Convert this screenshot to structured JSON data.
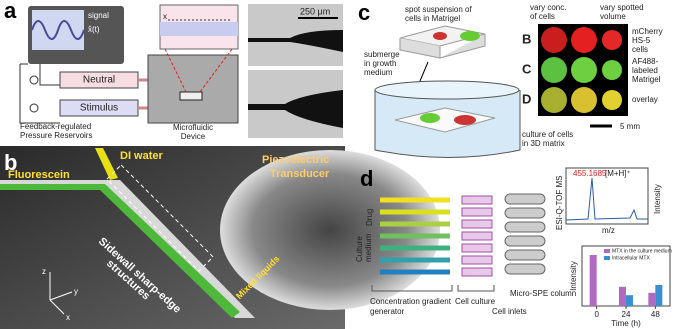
{
  "panel_a": {
    "letter": "a",
    "signal": "signal",
    "signal_symbol": "x̂(t)",
    "x_marker": "x",
    "scale_bar": "250 μm",
    "neutral": "Neutral",
    "stimulus": "Stimulus",
    "reservoirs": [
      "Feedback-regulated",
      "Pressure Reservoirs"
    ],
    "device": [
      "Microfluidic",
      "Device"
    ]
  },
  "panel_b": {
    "letter": "b",
    "di_water": "DI water",
    "transducer": [
      "Piezoelectric",
      "Transducer"
    ],
    "fluorescein": "Fluorescein",
    "structures": [
      "Sidewall sharp-edge",
      "structures"
    ],
    "mixed": "Mixed liquids",
    "axes": [
      "z",
      "y",
      "x"
    ]
  },
  "panel_c": {
    "letter": "c",
    "spot": [
      "spot suspension of",
      "cells in Matrigel"
    ],
    "submerge": [
      "submerge",
      "in growth",
      "medium"
    ],
    "vary_conc": [
      "vary conc.",
      "of cells"
    ],
    "vary_volume": [
      "vary spotted",
      "volume"
    ],
    "rows": [
      {
        "letter": "B",
        "label": [
          "mCherry",
          "HS-5",
          "cells"
        ]
      },
      {
        "letter": "C",
        "label": [
          "AF488-",
          "labeled",
          "Matrigel"
        ]
      },
      {
        "letter": "D",
        "label": [
          "overlay"
        ]
      }
    ],
    "scale_bar": "5 mm",
    "culture": [
      "culture of cells",
      "in 3D matrix"
    ]
  },
  "panel_d": {
    "letter": "d",
    "drug": "Drug",
    "medium": [
      "Culture",
      "medium"
    ],
    "gradient": [
      "Concentration gradient",
      "generator"
    ],
    "cell_culture": "Cell culture",
    "cell_inlets": "Cell inlets",
    "spe": "Micro-SPE column",
    "ms_peak": "455.1685",
    "ms_ion": "[M+H]⁺",
    "ms_xlabel": "m/z",
    "ms_ylabel": "Intensity",
    "ms_side": "ESI-Q-TOF MS",
    "chart": {
      "type": "bar",
      "ylabel": "Intensity",
      "xlabel": "Time (h)",
      "x": [
        0,
        24,
        48
      ],
      "xticks": [
        0,
        24,
        48
      ],
      "xlim": [
        -12,
        60
      ],
      "ylim": [
        0,
        1
      ],
      "series": [
        {
          "name": "MTX in the culture medium",
          "color": "#b06ac0",
          "values": [
            0.85,
            0.32,
            0.22
          ]
        },
        {
          "name": "Intracellular MTX",
          "color": "#3a8fd0",
          "values": [
            null,
            0.18,
            0.35
          ]
        }
      ]
    }
  }
}
